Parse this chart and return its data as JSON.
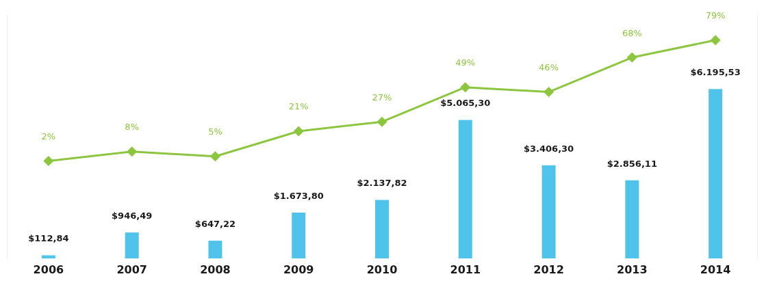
{
  "chart_data": {
    "type": "bar",
    "categories": [
      "2006",
      "2007",
      "2008",
      "2009",
      "2010",
      "2011",
      "2012",
      "2013",
      "2014"
    ],
    "series": [
      {
        "color": "#4fc3ea",
        "values": [
          112.84,
          946.49,
          647.22,
          1673.8,
          2137.82,
          5065.3,
          3406.3,
          2856.11,
          6195.53
        ],
        "value_labels": [
          "$112,84",
          "$946,49",
          "$647,22",
          "$1.673,80",
          "$2.137,82",
          "$5.065,30",
          "$3.406,30",
          "$2.856,11",
          "$6.195,53"
        ]
      },
      {
        "type": "line",
        "axis": "y2",
        "color": "#8cc63f",
        "values": [
          2,
          8,
          5,
          21,
          27,
          49,
          46,
          68,
          79
        ],
        "value_labels": [
          "2%",
          "8%",
          "5%",
          "21%",
          "27%",
          "49%",
          "46%",
          "68%",
          "79%"
        ]
      }
    ],
    "ylim": [
      0,
      8900
    ],
    "y2lim": [
      -60,
      95
    ],
    "marker": "diamond",
    "line_style": "solid",
    "grid": false
  }
}
